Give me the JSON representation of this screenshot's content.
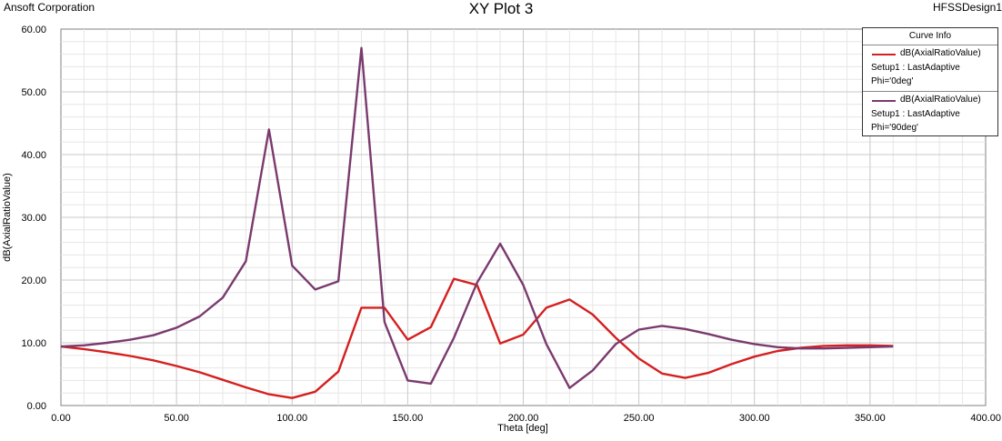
{
  "header": {
    "company": "Ansoft Corporation",
    "title": "XY Plot 3",
    "design": "HFSSDesign1"
  },
  "legend": {
    "title": "Curve Info",
    "entries": [
      {
        "name": "dB(AxialRatioValue)",
        "setup": "Setup1 : LastAdaptive",
        "param": "Phi='0deg'",
        "color": "#d42020"
      },
      {
        "name": "dB(AxialRatioValue)",
        "setup": "Setup1 : LastAdaptive",
        "param": "Phi='90deg'",
        "color": "#7a3a6e"
      }
    ]
  },
  "chart_data": {
    "type": "line",
    "title": "XY Plot 3",
    "xlabel": "Theta [deg]",
    "ylabel": "dB(AxialRatioValue)",
    "xlim": [
      0,
      400
    ],
    "ylim": [
      0,
      60
    ],
    "xticks": [
      "0.00",
      "50.00",
      "100.00",
      "150.00",
      "200.00",
      "250.00",
      "300.00",
      "350.00",
      "400.00"
    ],
    "yticks": [
      "0.00",
      "10.00",
      "20.00",
      "30.00",
      "40.00",
      "50.00",
      "60.00"
    ],
    "grid": true,
    "legend_position": "top-right",
    "x": [
      0,
      10,
      20,
      30,
      40,
      50,
      60,
      70,
      80,
      90,
      100,
      110,
      120,
      130,
      140,
      150,
      160,
      170,
      180,
      190,
      200,
      210,
      220,
      230,
      240,
      250,
      260,
      270,
      280,
      290,
      300,
      310,
      320,
      330,
      340,
      350,
      360
    ],
    "series": [
      {
        "name": "dB(AxialRatioValue) Phi='0deg'",
        "color": "#d42020",
        "values": [
          9.4,
          9.0,
          8.5,
          7.9,
          7.2,
          6.3,
          5.3,
          4.1,
          2.9,
          1.8,
          1.2,
          2.2,
          5.4,
          15.6,
          15.6,
          10.5,
          12.5,
          20.2,
          19.2,
          9.9,
          11.3,
          15.6,
          16.9,
          14.5,
          10.8,
          7.5,
          5.1,
          4.4,
          5.2,
          6.6,
          7.8,
          8.7,
          9.2,
          9.5,
          9.6,
          9.6,
          9.5
        ]
      },
      {
        "name": "dB(AxialRatioValue) Phi='90deg'",
        "color": "#7a3a6e",
        "values": [
          9.4,
          9.6,
          10.0,
          10.5,
          11.2,
          12.4,
          14.2,
          17.2,
          23.0,
          44.0,
          22.3,
          18.5,
          19.8,
          57.0,
          13.3,
          4.0,
          3.5,
          10.8,
          19.6,
          25.8,
          19.2,
          9.8,
          2.8,
          5.6,
          9.8,
          12.1,
          12.7,
          12.2,
          11.4,
          10.5,
          9.8,
          9.3,
          9.1,
          9.1,
          9.2,
          9.3,
          9.4
        ]
      }
    ]
  }
}
